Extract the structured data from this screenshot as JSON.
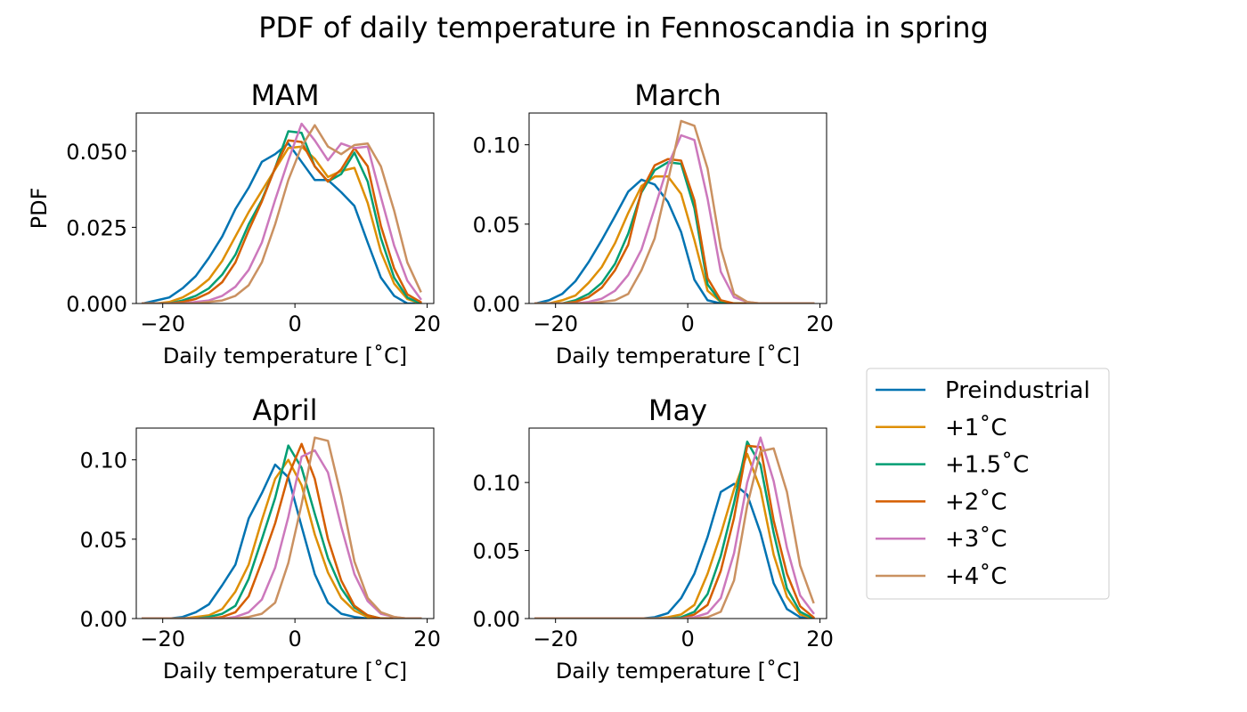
{
  "figure_title": "PDF of daily temperature in Fennoscandia in spring",
  "legend_entries": [
    "Preindustrial",
    "+1˚C",
    "+1.5˚C",
    "+2˚C",
    "+3˚C",
    "+4˚C"
  ],
  "chart_data": [
    {
      "type": "line",
      "title": "MAM",
      "xlabel": "Daily temperature [˚C]",
      "ylabel": "PDF",
      "xlim": [
        -24,
        21
      ],
      "ylim": [
        0,
        0.0625
      ],
      "xticks": [
        -20,
        0,
        20
      ],
      "xtick_labels": [
        "−20",
        "0",
        "20"
      ],
      "yticks": [
        0,
        0.025,
        0.05
      ],
      "ytick_labels": [
        "0.000",
        "0.025",
        "0.050"
      ],
      "x": [
        -23,
        -21,
        -19,
        -17,
        -15,
        -13,
        -11,
        -9,
        -7,
        -5,
        -3,
        -1,
        1,
        3,
        5,
        7,
        9,
        11,
        13,
        15,
        17,
        19
      ],
      "series": [
        {
          "name": "Preindustrial",
          "color": "#0173b2",
          "values": [
            0.0,
            0.001,
            0.002,
            0.005,
            0.009,
            0.015,
            0.022,
            0.031,
            0.038,
            0.0465,
            0.049,
            0.0525,
            0.0465,
            0.0405,
            0.0405,
            0.0365,
            0.032,
            0.02,
            0.0085,
            0.0025,
            0.0,
            0.0
          ]
        },
        {
          "name": "+1˚C",
          "color": "#de8f05",
          "values": [
            0.0,
            0.0,
            0.0005,
            0.002,
            0.0045,
            0.008,
            0.014,
            0.022,
            0.03,
            0.037,
            0.044,
            0.051,
            0.0515,
            0.0475,
            0.0415,
            0.0435,
            0.0445,
            0.033,
            0.017,
            0.0065,
            0.0015,
            0.0
          ]
        },
        {
          "name": "+1.5˚C",
          "color": "#029e73",
          "values": [
            0.0,
            0.0,
            0.0,
            0.001,
            0.0025,
            0.005,
            0.0095,
            0.016,
            0.026,
            0.034,
            0.0445,
            0.0565,
            0.056,
            0.045,
            0.04,
            0.0425,
            0.0495,
            0.04,
            0.0215,
            0.0085,
            0.002,
            0.0
          ]
        },
        {
          "name": "+2˚C",
          "color": "#d55e00",
          "values": [
            0.0,
            0.0,
            0.0,
            0.0005,
            0.0015,
            0.0035,
            0.007,
            0.0135,
            0.024,
            0.0335,
            0.0445,
            0.0535,
            0.053,
            0.045,
            0.04,
            0.044,
            0.051,
            0.045,
            0.0255,
            0.0115,
            0.003,
            0.0005
          ]
        },
        {
          "name": "+3˚C",
          "color": "#cc78bc",
          "values": [
            0.0,
            0.0,
            0.0,
            0.0,
            0.0005,
            0.001,
            0.0025,
            0.0055,
            0.011,
            0.02,
            0.034,
            0.047,
            0.059,
            0.0535,
            0.047,
            0.0525,
            0.051,
            0.0515,
            0.035,
            0.019,
            0.0075,
            0.0015
          ]
        },
        {
          "name": "+4˚C",
          "color": "#ca9161",
          "values": [
            0.0,
            0.0,
            0.0,
            0.0,
            0.0,
            0.0005,
            0.001,
            0.0025,
            0.006,
            0.0135,
            0.026,
            0.0405,
            0.0515,
            0.0585,
            0.0515,
            0.049,
            0.052,
            0.0525,
            0.045,
            0.0305,
            0.0135,
            0.004
          ]
        }
      ]
    },
    {
      "type": "line",
      "title": "March",
      "xlabel": "Daily temperature [˚C]",
      "ylabel": "",
      "xlim": [
        -24,
        21
      ],
      "ylim": [
        0,
        0.12
      ],
      "xticks": [
        -20,
        0,
        20
      ],
      "xtick_labels": [
        "−20",
        "0",
        "20"
      ],
      "yticks": [
        0,
        0.05,
        0.1
      ],
      "ytick_labels": [
        "0.00",
        "0.05",
        "0.10"
      ],
      "x": [
        -23,
        -21,
        -19,
        -17,
        -15,
        -13,
        -11,
        -9,
        -7,
        -5,
        -3,
        -1,
        1,
        3,
        5,
        7,
        9,
        11,
        13,
        15,
        17,
        19
      ],
      "series": [
        {
          "name": "Preindustrial",
          "color": "#0173b2",
          "values": [
            0.0,
            0.002,
            0.006,
            0.014,
            0.026,
            0.04,
            0.055,
            0.0705,
            0.078,
            0.075,
            0.064,
            0.045,
            0.015,
            0.002,
            0.0,
            0.0,
            0.0,
            0.0,
            0.0,
            0.0,
            0.0,
            0.0
          ]
        },
        {
          "name": "+1˚C",
          "color": "#de8f05",
          "values": [
            0.0,
            0.0,
            0.002,
            0.005,
            0.013,
            0.023,
            0.038,
            0.057,
            0.074,
            0.08,
            0.08,
            0.069,
            0.04,
            0.008,
            0.001,
            0.0,
            0.0,
            0.0,
            0.0,
            0.0,
            0.0,
            0.0
          ]
        },
        {
          "name": "+1.5˚C",
          "color": "#029e73",
          "values": [
            0.0,
            0.0,
            0.0,
            0.002,
            0.006,
            0.013,
            0.025,
            0.044,
            0.07,
            0.084,
            0.089,
            0.088,
            0.06,
            0.012,
            0.001,
            0.0,
            0.0,
            0.0,
            0.0,
            0.0,
            0.0,
            0.0
          ]
        },
        {
          "name": "+2˚C",
          "color": "#d55e00",
          "values": [
            0.0,
            0.0,
            0.0,
            0.001,
            0.004,
            0.01,
            0.021,
            0.037,
            0.071,
            0.087,
            0.091,
            0.09,
            0.065,
            0.016,
            0.002,
            0.0,
            0.0,
            0.0,
            0.0,
            0.0,
            0.0,
            0.0
          ]
        },
        {
          "name": "+3˚C",
          "color": "#cc78bc",
          "values": [
            0.0,
            0.0,
            0.0,
            0.0,
            0.001,
            0.003,
            0.008,
            0.018,
            0.034,
            0.06,
            0.087,
            0.106,
            0.103,
            0.066,
            0.02,
            0.004,
            0.001,
            0.0,
            0.0,
            0.0,
            0.0,
            0.0
          ]
        },
        {
          "name": "+4˚C",
          "color": "#ca9161",
          "values": [
            0.0,
            0.0,
            0.0,
            0.0,
            0.0,
            0.001,
            0.002,
            0.006,
            0.021,
            0.041,
            0.077,
            0.115,
            0.112,
            0.085,
            0.035,
            0.006,
            0.001,
            0.0,
            0.0,
            0.0,
            0.0,
            0.0
          ]
        }
      ]
    },
    {
      "type": "line",
      "title": "April",
      "xlabel": "Daily temperature [˚C]",
      "ylabel": "",
      "xlim": [
        -24,
        21
      ],
      "ylim": [
        0,
        0.12
      ],
      "xticks": [
        -20,
        0,
        20
      ],
      "xtick_labels": [
        "−20",
        "0",
        "20"
      ],
      "yticks": [
        0,
        0.05,
        0.1
      ],
      "ytick_labels": [
        "0.00",
        "0.05",
        "0.10"
      ],
      "x": [
        -23,
        -21,
        -19,
        -17,
        -15,
        -13,
        -11,
        -9,
        -7,
        -5,
        -3,
        -1,
        1,
        3,
        5,
        7,
        9,
        11,
        13,
        15,
        17,
        19
      ],
      "series": [
        {
          "name": "Preindustrial",
          "color": "#0173b2",
          "values": [
            0.0,
            0.0,
            0.0,
            0.001,
            0.004,
            0.009,
            0.021,
            0.034,
            0.063,
            0.079,
            0.097,
            0.089,
            0.058,
            0.028,
            0.01,
            0.003,
            0.001,
            0.0,
            0.0,
            0.0,
            0.0,
            0.0
          ]
        },
        {
          "name": "+1˚C",
          "color": "#de8f05",
          "values": [
            0.0,
            0.0,
            0.0,
            0.0,
            0.001,
            0.002,
            0.006,
            0.017,
            0.034,
            0.062,
            0.088,
            0.1,
            0.084,
            0.053,
            0.029,
            0.013,
            0.005,
            0.001,
            0.0,
            0.0,
            0.0,
            0.0
          ]
        },
        {
          "name": "+1.5˚C",
          "color": "#029e73",
          "values": [
            0.0,
            0.0,
            0.0,
            0.0,
            0.0,
            0.001,
            0.003,
            0.008,
            0.025,
            0.05,
            0.076,
            0.109,
            0.095,
            0.066,
            0.038,
            0.019,
            0.007,
            0.002,
            0.0,
            0.0,
            0.0,
            0.0
          ]
        },
        {
          "name": "+2˚C",
          "color": "#d55e00",
          "values": [
            0.0,
            0.0,
            0.0,
            0.0,
            0.0,
            0.0,
            0.001,
            0.004,
            0.014,
            0.036,
            0.06,
            0.09,
            0.11,
            0.088,
            0.05,
            0.024,
            0.008,
            0.002,
            0.0,
            0.0,
            0.0,
            0.0
          ]
        },
        {
          "name": "+3˚C",
          "color": "#cc78bc",
          "values": [
            0.0,
            0.0,
            0.0,
            0.0,
            0.0,
            0.0,
            0.0,
            0.001,
            0.004,
            0.012,
            0.032,
            0.064,
            0.102,
            0.106,
            0.092,
            0.058,
            0.028,
            0.011,
            0.003,
            0.001,
            0.0,
            0.0
          ]
        },
        {
          "name": "+4˚C",
          "color": "#ca9161",
          "values": [
            0.0,
            0.0,
            0.0,
            0.0,
            0.0,
            0.0,
            0.0,
            0.0,
            0.001,
            0.003,
            0.01,
            0.035,
            0.072,
            0.114,
            0.112,
            0.077,
            0.036,
            0.013,
            0.004,
            0.001,
            0.0,
            0.0
          ]
        }
      ]
    },
    {
      "type": "line",
      "title": "May",
      "xlabel": "Daily temperature [˚C]",
      "ylabel": "",
      "xlim": [
        -24,
        21
      ],
      "ylim": [
        0,
        0.14
      ],
      "xticks": [
        -20,
        0,
        20
      ],
      "xtick_labels": [
        "−20",
        "0",
        "20"
      ],
      "yticks": [
        0,
        0.05,
        0.1
      ],
      "ytick_labels": [
        "0.00",
        "0.05",
        "0.10"
      ],
      "x": [
        -23,
        -21,
        -19,
        -17,
        -15,
        -13,
        -11,
        -9,
        -7,
        -5,
        -3,
        -1,
        1,
        3,
        5,
        7,
        9,
        11,
        13,
        15,
        17,
        19
      ],
      "series": [
        {
          "name": "Preindustrial",
          "color": "#0173b2",
          "values": [
            0.0,
            0.0,
            0.0,
            0.0,
            0.0,
            0.0,
            0.0,
            0.0,
            0.0,
            0.001,
            0.004,
            0.015,
            0.033,
            0.06,
            0.093,
            0.099,
            0.091,
            0.063,
            0.026,
            0.007,
            0.001,
            0.0
          ]
        },
        {
          "name": "+1˚C",
          "color": "#de8f05",
          "values": [
            0.0,
            0.0,
            0.0,
            0.0,
            0.0,
            0.0,
            0.0,
            0.0,
            0.0,
            0.0,
            0.001,
            0.003,
            0.01,
            0.033,
            0.062,
            0.095,
            0.121,
            0.095,
            0.047,
            0.016,
            0.003,
            0.0
          ]
        },
        {
          "name": "+1.5˚C",
          "color": "#029e73",
          "values": [
            0.0,
            0.0,
            0.0,
            0.0,
            0.0,
            0.0,
            0.0,
            0.0,
            0.0,
            0.0,
            0.0,
            0.001,
            0.005,
            0.018,
            0.046,
            0.085,
            0.13,
            0.113,
            0.063,
            0.022,
            0.005,
            0.0
          ]
        },
        {
          "name": "+2˚C",
          "color": "#d55e00",
          "values": [
            0.0,
            0.0,
            0.0,
            0.0,
            0.0,
            0.0,
            0.0,
            0.0,
            0.0,
            0.0,
            0.0,
            0.0,
            0.003,
            0.01,
            0.035,
            0.074,
            0.127,
            0.126,
            0.072,
            0.033,
            0.009,
            0.001
          ]
        },
        {
          "name": "+3˚C",
          "color": "#cc78bc",
          "values": [
            0.0,
            0.0,
            0.0,
            0.0,
            0.0,
            0.0,
            0.0,
            0.0,
            0.0,
            0.0,
            0.0,
            0.0,
            0.001,
            0.004,
            0.015,
            0.048,
            0.1,
            0.133,
            0.101,
            0.052,
            0.017,
            0.004
          ]
        },
        {
          "name": "+4˚C",
          "color": "#ca9161",
          "values": [
            0.0,
            0.0,
            0.0,
            0.0,
            0.0,
            0.0,
            0.0,
            0.0,
            0.0,
            0.0,
            0.0,
            0.0,
            0.0,
            0.001,
            0.005,
            0.028,
            0.083,
            0.123,
            0.125,
            0.093,
            0.039,
            0.012
          ]
        }
      ]
    }
  ]
}
